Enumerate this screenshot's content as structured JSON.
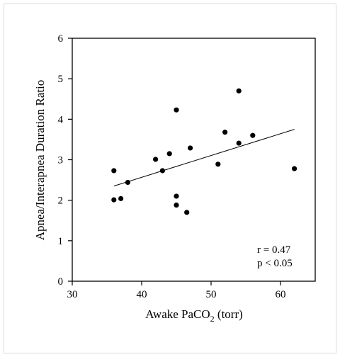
{
  "chart_data": {
    "type": "scatter",
    "xlabel": "Awake PaCO",
    "xlabel_subscript": "2",
    "xlabel_suffix": " (torr)",
    "ylabel": "Apnea/Interapnea Duration Ratio",
    "xlim": [
      30,
      65
    ],
    "ylim": [
      0,
      6
    ],
    "xticks": [
      "30",
      "40",
      "50",
      "60"
    ],
    "yticks": [
      "0",
      "1",
      "2",
      "3",
      "4",
      "5",
      "6"
    ],
    "points": [
      {
        "x": 36,
        "y": 2.73
      },
      {
        "x": 36,
        "y": 2.01
      },
      {
        "x": 37,
        "y": 2.04
      },
      {
        "x": 38,
        "y": 2.44
      },
      {
        "x": 42,
        "y": 3.01
      },
      {
        "x": 43,
        "y": 2.73
      },
      {
        "x": 44,
        "y": 3.15
      },
      {
        "x": 45,
        "y": 4.23
      },
      {
        "x": 45,
        "y": 2.1
      },
      {
        "x": 45,
        "y": 1.88
      },
      {
        "x": 46.5,
        "y": 1.7
      },
      {
        "x": 47,
        "y": 3.29
      },
      {
        "x": 51,
        "y": 2.89
      },
      {
        "x": 52,
        "y": 3.68
      },
      {
        "x": 54,
        "y": 4.7
      },
      {
        "x": 54,
        "y": 3.41
      },
      {
        "x": 56,
        "y": 3.6
      },
      {
        "x": 62,
        "y": 2.78
      }
    ],
    "regression_line": {
      "x": [
        36,
        62
      ],
      "y": [
        2.35,
        3.75
      ]
    },
    "annotations": [
      "r = 0.47",
      "p < 0.05"
    ],
    "grid": false,
    "legend": "none"
  }
}
